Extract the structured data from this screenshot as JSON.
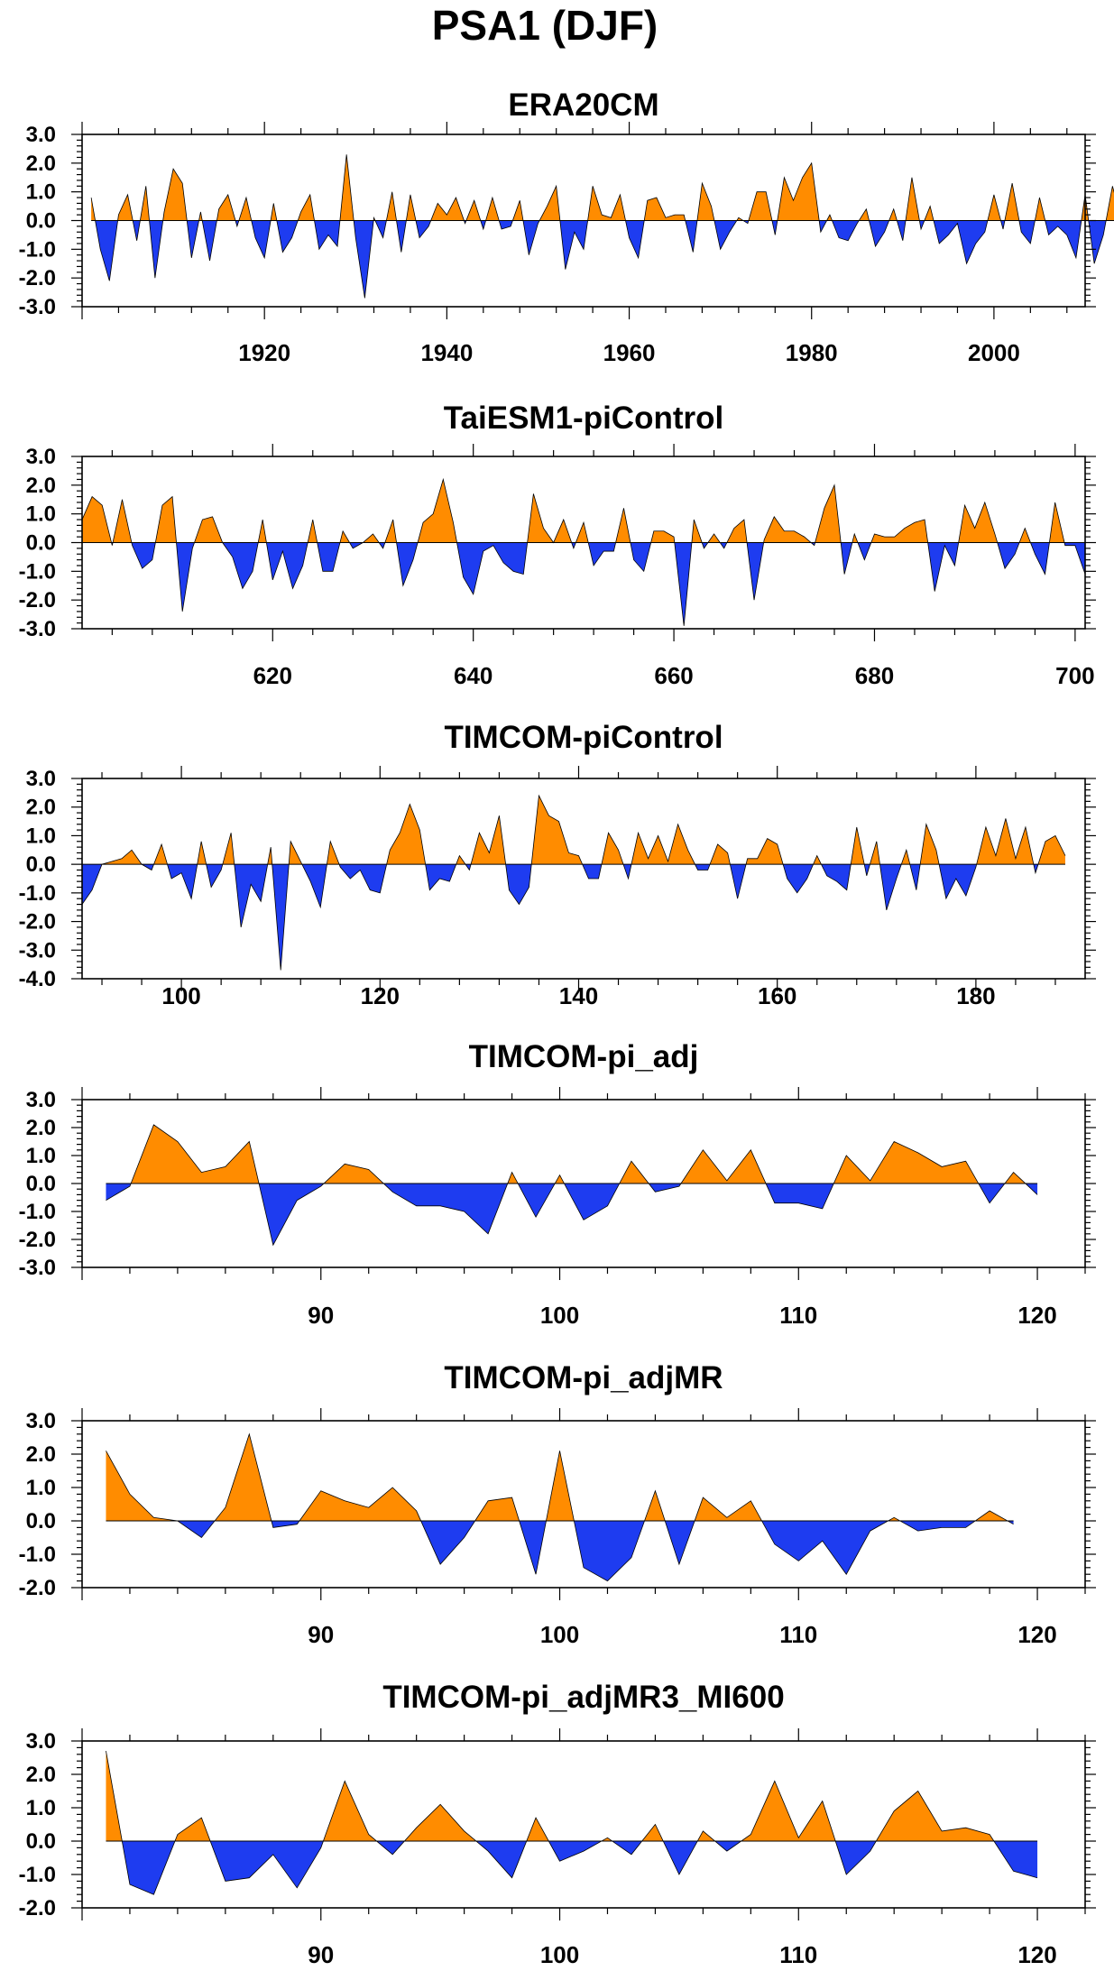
{
  "figure_title": "PSA1 (DJF)",
  "colors": {
    "positive": "#ff8c00",
    "negative": "#1e3cf0",
    "axis": "#000000"
  },
  "chart_data": [
    {
      "type": "area",
      "title": "ERA20CM",
      "xlim": [
        1900,
        2010
      ],
      "ylim": [
        -3,
        3
      ],
      "xticks": [
        1920,
        1940,
        1960,
        1980,
        2000
      ],
      "yticks": [
        3,
        2,
        1,
        0,
        -1,
        -2,
        -3
      ],
      "ytick_labels": [
        "3.0",
        "2.0",
        "1.0",
        "0.0",
        "-1.0",
        "-2.0",
        "-3.0"
      ],
      "grid": false,
      "x_start": 1901,
      "values": [
        0.8,
        -1.0,
        -2.1,
        0.2,
        0.9,
        -0.7,
        1.2,
        -2.0,
        0.3,
        1.8,
        1.3,
        -1.3,
        0.3,
        -1.4,
        0.4,
        0.9,
        -0.2,
        0.8,
        -0.6,
        -1.3,
        0.6,
        -1.1,
        -0.6,
        0.3,
        0.9,
        -1.0,
        -0.5,
        -0.9,
        2.3,
        -0.6,
        -2.7,
        0.1,
        -0.6,
        1.0,
        -1.1,
        0.9,
        -0.6,
        -0.2,
        0.6,
        0.2,
        0.8,
        -0.1,
        0.7,
        -0.3,
        0.8,
        -0.3,
        -0.2,
        0.7,
        -1.2,
        -0.1,
        0.5,
        1.2,
        -1.7,
        -0.4,
        -1.0,
        1.2,
        0.2,
        0.1,
        0.9,
        -0.6,
        -1.3,
        0.7,
        0.8,
        0.1,
        0.2,
        0.2,
        -1.1,
        1.3,
        0.5,
        -1.0,
        -0.4,
        0.1,
        -0.1,
        1.0,
        1.0,
        -0.5,
        1.5,
        0.7,
        1.5,
        2.0,
        -0.4,
        0.2,
        -0.6,
        -0.7,
        -0.1,
        0.4,
        -0.9,
        -0.4,
        0.4,
        -0.7,
        1.5,
        -0.3,
        0.5,
        -0.8,
        -0.5,
        -0.1,
        -1.5,
        -0.8,
        -0.4,
        0.9,
        -0.3,
        1.3,
        -0.4,
        -0.8,
        0.8,
        -0.5,
        -0.2,
        -0.5,
        -1.3,
        0.9,
        -1.5,
        -0.5,
        1.2,
        0.0
      ]
    },
    {
      "type": "area",
      "title": "TaiESM1-piControl",
      "xlim": [
        601,
        701
      ],
      "ylim": [
        -3,
        3
      ],
      "xticks": [
        620,
        640,
        660,
        680,
        700
      ],
      "yticks": [
        3,
        2,
        1,
        0,
        -1,
        -2,
        -3
      ],
      "ytick_labels": [
        "3.0",
        "2.0",
        "1.0",
        "0.0",
        "-1.0",
        "-2.0",
        "-3.0"
      ],
      "grid": false,
      "x_start": 601,
      "values": [
        0.8,
        1.6,
        1.3,
        -0.1,
        1.5,
        -0.1,
        -0.9,
        -0.6,
        1.3,
        1.6,
        -2.4,
        -0.2,
        0.8,
        0.9,
        0.0,
        -0.5,
        -1.6,
        -1.0,
        0.8,
        -1.3,
        -0.3,
        -1.6,
        -0.8,
        0.8,
        -1.0,
        -1.0,
        0.4,
        -0.2,
        0.0,
        0.3,
        -0.2,
        0.8,
        -1.5,
        -0.6,
        0.7,
        1.0,
        2.2,
        0.7,
        -1.2,
        -1.8,
        -0.3,
        -0.1,
        -0.7,
        -1.0,
        -1.1,
        1.7,
        0.5,
        0.0,
        0.8,
        -0.2,
        0.7,
        -0.8,
        -0.3,
        -0.3,
        1.2,
        -0.6,
        -1.0,
        0.4,
        0.4,
        0.2,
        -2.9,
        0.8,
        -0.2,
        0.3,
        -0.2,
        0.5,
        0.8,
        -2.0,
        0.1,
        0.9,
        0.4,
        0.4,
        0.2,
        -0.1,
        1.2,
        2.0,
        -1.1,
        0.3,
        -0.6,
        0.3,
        0.2,
        0.2,
        0.5,
        0.7,
        0.8,
        -1.7,
        -0.1,
        -0.8,
        1.3,
        0.5,
        1.4,
        0.3,
        -0.9,
        -0.4,
        0.5,
        -0.4,
        -1.1,
        1.4,
        -0.1,
        -0.1,
        -1.1
      ]
    },
    {
      "type": "area",
      "title": "TIMCOM-piControl",
      "xlim": [
        90,
        191
      ],
      "ylim": [
        -4,
        3
      ],
      "xticks": [
        100,
        120,
        140,
        160,
        180
      ],
      "yticks": [
        3,
        2,
        1,
        0,
        -1,
        -2,
        -3,
        -4
      ],
      "ytick_labels": [
        "3.0",
        "2.0",
        "1.0",
        "0.0",
        "-1.0",
        "-2.0",
        "-3.0",
        "-4.0"
      ],
      "grid": false,
      "x_start": 90,
      "values": [
        -1.4,
        -0.9,
        0.0,
        0.1,
        0.2,
        0.5,
        0.0,
        -0.2,
        0.7,
        -0.5,
        -0.3,
        -1.2,
        0.8,
        -0.8,
        -0.2,
        1.1,
        -2.2,
        -0.7,
        -1.3,
        0.6,
        -3.7,
        0.8,
        0.1,
        -0.6,
        -1.5,
        0.8,
        -0.1,
        -0.5,
        -0.2,
        -0.9,
        -1.0,
        0.5,
        1.1,
        2.1,
        1.2,
        -0.9,
        -0.5,
        -0.6,
        0.3,
        -0.2,
        1.1,
        0.4,
        1.7,
        -0.9,
        -1.4,
        -0.8,
        2.4,
        1.7,
        1.5,
        0.4,
        0.3,
        -0.5,
        -0.5,
        1.1,
        0.5,
        -0.5,
        1.1,
        0.2,
        1.0,
        0.1,
        1.4,
        0.5,
        -0.2,
        -0.2,
        0.7,
        0.4,
        -1.2,
        0.2,
        0.2,
        0.9,
        0.7,
        -0.5,
        -1.0,
        -0.5,
        0.3,
        -0.4,
        -0.6,
        -0.9,
        1.3,
        -0.4,
        0.8,
        -1.6,
        -0.5,
        0.5,
        -0.9,
        1.4,
        0.5,
        -1.2,
        -0.5,
        -1.1,
        -0.1,
        1.3,
        0.3,
        1.6,
        0.2,
        1.3,
        -0.3,
        0.8,
        1.0,
        0.3
      ]
    },
    {
      "type": "area",
      "title": "TIMCOM-pi_adj",
      "xlim": [
        80,
        122
      ],
      "ylim": [
        -3,
        3
      ],
      "xticks": [
        90,
        100,
        110,
        120
      ],
      "yticks": [
        3,
        2,
        1,
        0,
        -1,
        -2,
        -3
      ],
      "ytick_labels": [
        "3.0",
        "2.0",
        "1.0",
        "0.0",
        "-1.0",
        "-2.0",
        "-3.0"
      ],
      "grid": false,
      "x_start": 81,
      "values": [
        -0.6,
        -0.1,
        2.1,
        1.5,
        0.4,
        0.6,
        1.5,
        -2.2,
        -0.6,
        -0.1,
        0.7,
        0.5,
        -0.3,
        -0.8,
        -0.8,
        -1.0,
        -1.8,
        0.4,
        -1.2,
        0.3,
        -1.3,
        -0.8,
        0.8,
        -0.3,
        -0.1,
        1.2,
        0.1,
        1.2,
        -0.7,
        -0.7,
        -0.9,
        1.0,
        0.1,
        1.5,
        1.1,
        0.6,
        0.8,
        -0.7,
        0.4,
        -0.4
      ]
    },
    {
      "type": "area",
      "title": "TIMCOM-pi_adjMR",
      "xlim": [
        80,
        122
      ],
      "ylim": [
        -2,
        3
      ],
      "xticks": [
        90,
        100,
        110,
        120
      ],
      "yticks": [
        3,
        2,
        1,
        0,
        -1,
        -2
      ],
      "ytick_labels": [
        "3.0",
        "2.0",
        "1.0",
        "0.0",
        "-1.0",
        "-2.0"
      ],
      "grid": false,
      "x_start": 81,
      "values": [
        2.1,
        0.8,
        0.1,
        0.0,
        -0.5,
        0.4,
        2.6,
        -0.2,
        -0.1,
        0.9,
        0.6,
        0.4,
        1.0,
        0.3,
        -1.3,
        -0.5,
        0.6,
        0.7,
        -1.6,
        2.1,
        -1.4,
        -1.8,
        -1.1,
        0.9,
        -1.3,
        0.7,
        0.1,
        0.6,
        -0.7,
        -1.2,
        -0.6,
        -1.6,
        -0.3,
        0.1,
        -0.3,
        -0.2,
        -0.2,
        0.3,
        -0.1
      ]
    },
    {
      "type": "area",
      "title": "TIMCOM-pi_adjMR3_MI600",
      "xlim": [
        80,
        122
      ],
      "ylim": [
        -2,
        3
      ],
      "xticks": [
        90,
        100,
        110,
        120
      ],
      "yticks": [
        3,
        2,
        1,
        0,
        -1,
        -2
      ],
      "ytick_labels": [
        "3.0",
        "2.0",
        "1.0",
        "0.0",
        "-1.0",
        "-2.0"
      ],
      "grid": false,
      "x_start": 81,
      "values": [
        2.7,
        -1.3,
        -1.6,
        0.2,
        0.7,
        -1.2,
        -1.1,
        -0.4,
        -1.4,
        -0.2,
        1.8,
        0.2,
        -0.4,
        0.4,
        1.1,
        0.3,
        -0.3,
        -1.1,
        0.7,
        -0.6,
        -0.3,
        0.1,
        -0.4,
        0.5,
        -1.0,
        0.3,
        -0.3,
        0.2,
        1.8,
        0.1,
        1.2,
        -1.0,
        -0.3,
        0.9,
        1.5,
        0.3,
        0.4,
        0.2,
        -0.9,
        -1.1
      ]
    }
  ]
}
